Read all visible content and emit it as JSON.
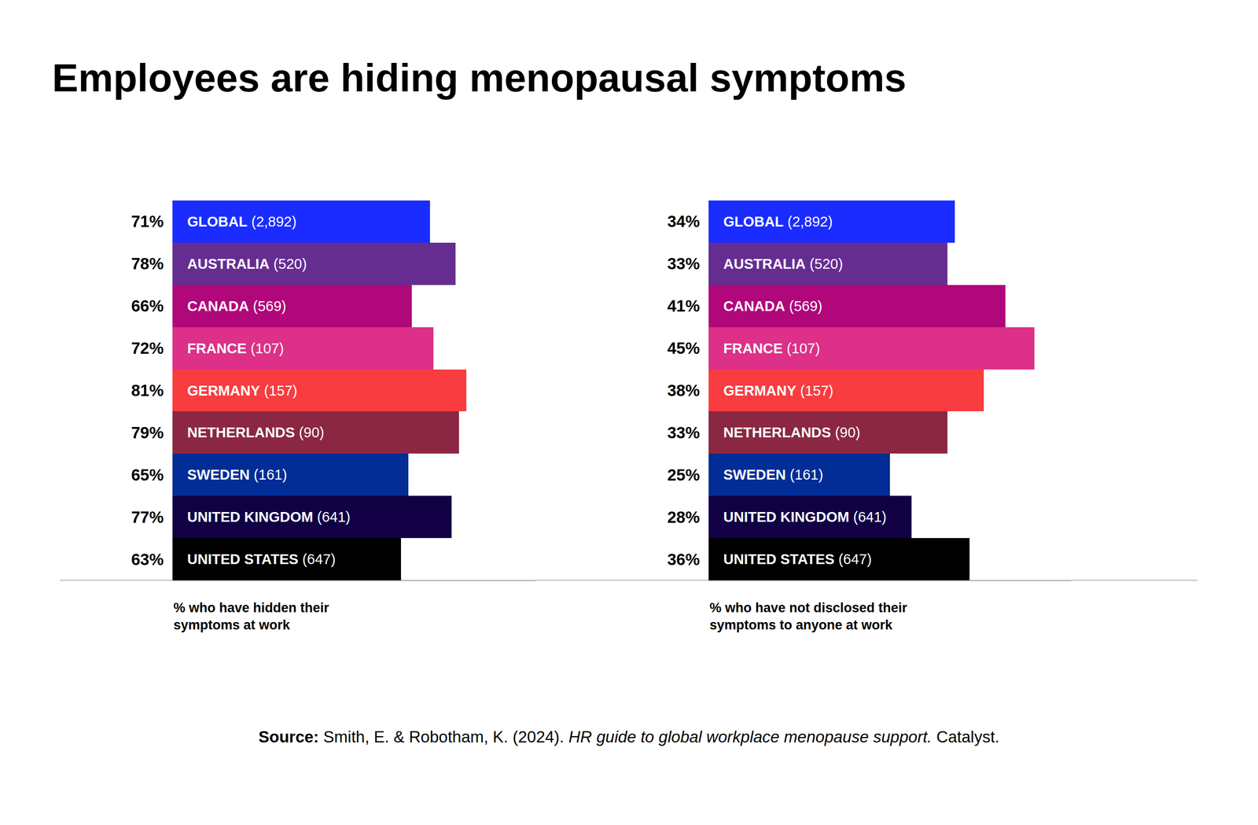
{
  "title": "Employees are hiding menopausal symptoms",
  "source": {
    "label": "Source:",
    "authors": "Smith, E. & Robotham, K. (2024).",
    "work": "HR guide to global workplace menopause support.",
    "publisher": "Catalyst."
  },
  "chart_data": [
    {
      "type": "bar",
      "orientation": "horizontal",
      "data_labels": true,
      "tick_labels": false,
      "xlabel": "% who have hidden their\nsymptoms at work",
      "categories": [
        "GLOBAL (2,892)",
        "AUSTRALIA (520)",
        "CANADA (569)",
        "FRANCE (107)",
        "GERMANY (157)",
        "NETHERLANDS (90)",
        "SWEDEN (161)",
        "UNITED KINGDOM (641)",
        "UNITED STATES (647)"
      ],
      "values": [
        71,
        78,
        66,
        72,
        81,
        79,
        65,
        77,
        63
      ],
      "value_labels": [
        "71%",
        "78%",
        "66%",
        "72%",
        "81%",
        "79%",
        "65%",
        "77%",
        "63%"
      ],
      "colors": [
        "#1a2cff",
        "#662d91",
        "#b0077a",
        "#dd3088",
        "#f83c40",
        "#8b2742",
        "#022d96",
        "#120045",
        "#000000"
      ],
      "xlim": [
        0,
        100
      ]
    },
    {
      "type": "bar",
      "orientation": "horizontal",
      "data_labels": true,
      "tick_labels": false,
      "xlabel": "% who have not disclosed their\nsymptoms to anyone at work",
      "categories": [
        "GLOBAL (2,892)",
        "AUSTRALIA (520)",
        "CANADA (569)",
        "FRANCE (107)",
        "GERMANY (157)",
        "NETHERLANDS (90)",
        "SWEDEN (161)",
        "UNITED KINGDOM (641)",
        "UNITED STATES (647)"
      ],
      "values": [
        34,
        33,
        41,
        45,
        38,
        33,
        25,
        28,
        36
      ],
      "value_labels": [
        "34%",
        "33%",
        "41%",
        "45%",
        "38%",
        "33%",
        "25%",
        "28%",
        "36%"
      ],
      "colors": [
        "#1a2cff",
        "#662d91",
        "#b0077a",
        "#dd3088",
        "#f83c40",
        "#8b2742",
        "#022d96",
        "#120045",
        "#000000"
      ],
      "xlim": [
        0,
        50
      ]
    }
  ]
}
